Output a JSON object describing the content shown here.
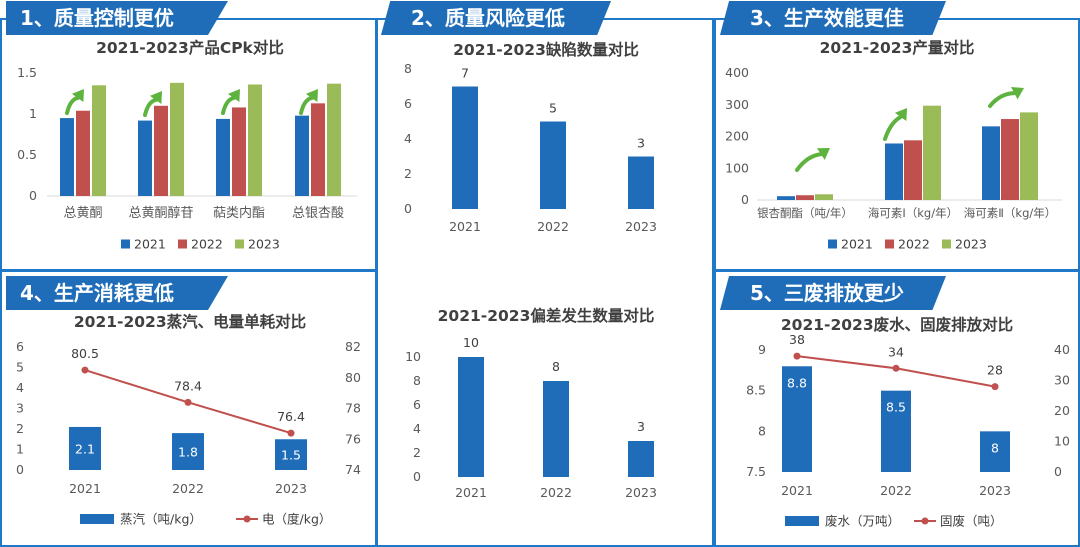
{
  "colors": {
    "blue": "#1f6db8",
    "red": "#c0504d",
    "green": "#9bbb59",
    "line": "#c0504d",
    "frame": "#1f78c8",
    "arrow": "#5db33d"
  },
  "sections": [
    {
      "banner": "1、质量控制更优"
    },
    {
      "banner": "2、质量风险更低"
    },
    {
      "banner": "3、生产效能更佳"
    },
    {
      "banner": "4、生产消耗更低"
    },
    {
      "banner": "5、三废排放更少"
    }
  ],
  "chart_data": [
    {
      "id": "cpk",
      "type": "bar",
      "title": "2021-2023产品CPk对比",
      "categories": [
        "总黄酮",
        "总黄酮醇苷",
        "萜类内酯",
        "总银杏酸"
      ],
      "series": [
        {
          "name": "2021",
          "values": [
            0.95,
            0.92,
            0.94,
            0.98
          ]
        },
        {
          "name": "2022",
          "values": [
            1.04,
            1.1,
            1.08,
            1.13
          ]
        },
        {
          "name": "2023",
          "values": [
            1.35,
            1.38,
            1.36,
            1.37
          ]
        }
      ],
      "ylim": [
        0,
        1.5
      ],
      "yticks": [
        "0",
        "0.5",
        "1",
        "1.5"
      ],
      "grid": false,
      "legend": "bottom"
    },
    {
      "id": "defects",
      "type": "bar",
      "title": "2021-2023缺陷数量对比",
      "categories": [
        "2021",
        "2022",
        "2023"
      ],
      "values": [
        7,
        5,
        3
      ],
      "ylim": [
        0,
        8
      ],
      "yticks": [
        "0",
        "2",
        "4",
        "6",
        "8"
      ],
      "grid": false
    },
    {
      "id": "output",
      "type": "bar",
      "title": "2021-2023产量对比",
      "categories": [
        "银杏酮酯（吨/年）",
        "海可素Ⅰ（kg/年）",
        "海可素Ⅱ（kg/年）"
      ],
      "series": [
        {
          "name": "2021",
          "values": [
            12,
            178,
            232
          ]
        },
        {
          "name": "2022",
          "values": [
            15,
            188,
            255
          ]
        },
        {
          "name": "2023",
          "values": [
            18,
            297,
            276
          ]
        }
      ],
      "ylim": [
        0,
        400
      ],
      "yticks": [
        "0",
        "100",
        "200",
        "300",
        "400"
      ],
      "grid": false,
      "legend": "bottom"
    },
    {
      "id": "consumption",
      "type": "bar+line",
      "title": "2021-2023蒸汽、电量单耗对比",
      "categories": [
        "2021",
        "2022",
        "2023"
      ],
      "series": [
        {
          "name": "蒸汽（吨/kg）",
          "type": "bar",
          "axis": "left",
          "values": [
            2.1,
            1.8,
            1.5
          ]
        },
        {
          "name": "电（度/kg）",
          "type": "line",
          "axis": "right",
          "values": [
            80.5,
            78.4,
            76.4
          ]
        }
      ],
      "bar_labels": [
        "2.1",
        "1.8",
        "1.5"
      ],
      "line_labels": [
        "80.5",
        "78.4",
        "76.4"
      ],
      "ylim": [
        0,
        6
      ],
      "yticks": [
        "0",
        "1",
        "2",
        "3",
        "4",
        "5",
        "6"
      ],
      "y2lim": [
        74,
        82
      ],
      "y2ticks": [
        "74",
        "76",
        "78",
        "80",
        "82"
      ],
      "grid": false,
      "legend": "bottom"
    },
    {
      "id": "deviations",
      "type": "bar",
      "title": "2021-2023偏差发生数量对比",
      "categories": [
        "2021",
        "2022",
        "2023"
      ],
      "values": [
        10,
        8,
        3
      ],
      "ylim": [
        0,
        10
      ],
      "yticks": [
        "0",
        "2",
        "4",
        "6",
        "8",
        "10"
      ],
      "grid": false
    },
    {
      "id": "waste",
      "type": "bar+line",
      "title": "2021-2023废水、固废排放对比",
      "categories": [
        "2021",
        "2022",
        "2023"
      ],
      "series": [
        {
          "name": "废水（万吨）",
          "type": "bar",
          "axis": "left",
          "values": [
            8.8,
            8.5,
            8
          ]
        },
        {
          "name": "固废（吨）",
          "type": "line",
          "axis": "right",
          "values": [
            38,
            34,
            28
          ]
        }
      ],
      "bar_labels": [
        "8.8",
        "8.5",
        "8"
      ],
      "line_labels": [
        "38",
        "34",
        "28"
      ],
      "ylim": [
        7.5,
        9
      ],
      "yticks": [
        "7.5",
        "8",
        "8.5",
        "9"
      ],
      "y2lim": [
        0,
        40
      ],
      "y2ticks": [
        "0",
        "10",
        "20",
        "30",
        "40"
      ],
      "grid": false,
      "legend": "bottom"
    }
  ]
}
